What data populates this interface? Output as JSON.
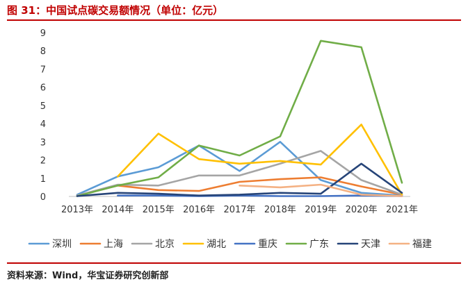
{
  "header": {
    "title": "图 31：中国试点碳交易额情况（单位：亿元）"
  },
  "footer": {
    "source": "资料来源：Wind，华宝证券研究创新部"
  },
  "chart_data": {
    "type": "line",
    "title": "图 31：中国试点碳交易额情况（单位：亿元）",
    "xlabel": "",
    "ylabel": "",
    "ylim": [
      0,
      9
    ],
    "yticks": [
      0,
      1,
      2,
      3,
      4,
      5,
      6,
      7,
      8,
      9
    ],
    "grid": false,
    "legend": "bottom",
    "categories": [
      "2013年",
      "2014年",
      "2015年",
      "2016年",
      "2017年",
      "2018年",
      "2019年",
      "2020年",
      "2021年"
    ],
    "series": [
      {
        "name": "深圳",
        "color": "#5b9bd5",
        "values": [
          0.1,
          1.1,
          1.6,
          2.8,
          1.4,
          3.0,
          0.9,
          0.2,
          0.05
        ]
      },
      {
        "name": "上海",
        "color": "#ed7d31",
        "values": [
          0.05,
          0.6,
          0.35,
          0.3,
          0.8,
          0.95,
          1.05,
          0.55,
          0.1
        ]
      },
      {
        "name": "北京",
        "color": "#a5a5a5",
        "values": [
          0.05,
          0.65,
          0.6,
          1.15,
          1.15,
          1.8,
          2.5,
          0.9,
          0.1
        ]
      },
      {
        "name": "湖北",
        "color": "#ffc000",
        "values": [
          null,
          1.1,
          3.45,
          2.05,
          1.8,
          1.95,
          1.75,
          3.95,
          0.1
        ]
      },
      {
        "name": "重庆",
        "color": "#4472c4",
        "values": [
          null,
          0.05,
          0.05,
          0.02,
          0.05,
          0.02,
          0.02,
          0.05,
          0.02
        ]
      },
      {
        "name": "广东",
        "color": "#70ad47",
        "values": [
          0.02,
          0.6,
          1.05,
          2.8,
          2.25,
          3.3,
          8.55,
          8.2,
          0.75
        ]
      },
      {
        "name": "天津",
        "color": "#264478",
        "values": [
          0.02,
          0.2,
          0.15,
          0.05,
          0.1,
          0.2,
          0.15,
          1.8,
          0.2
        ]
      },
      {
        "name": "福建",
        "color": "#f4b183",
        "values": [
          null,
          null,
          null,
          null,
          0.6,
          0.5,
          0.65,
          0.1,
          0.02
        ]
      }
    ]
  }
}
